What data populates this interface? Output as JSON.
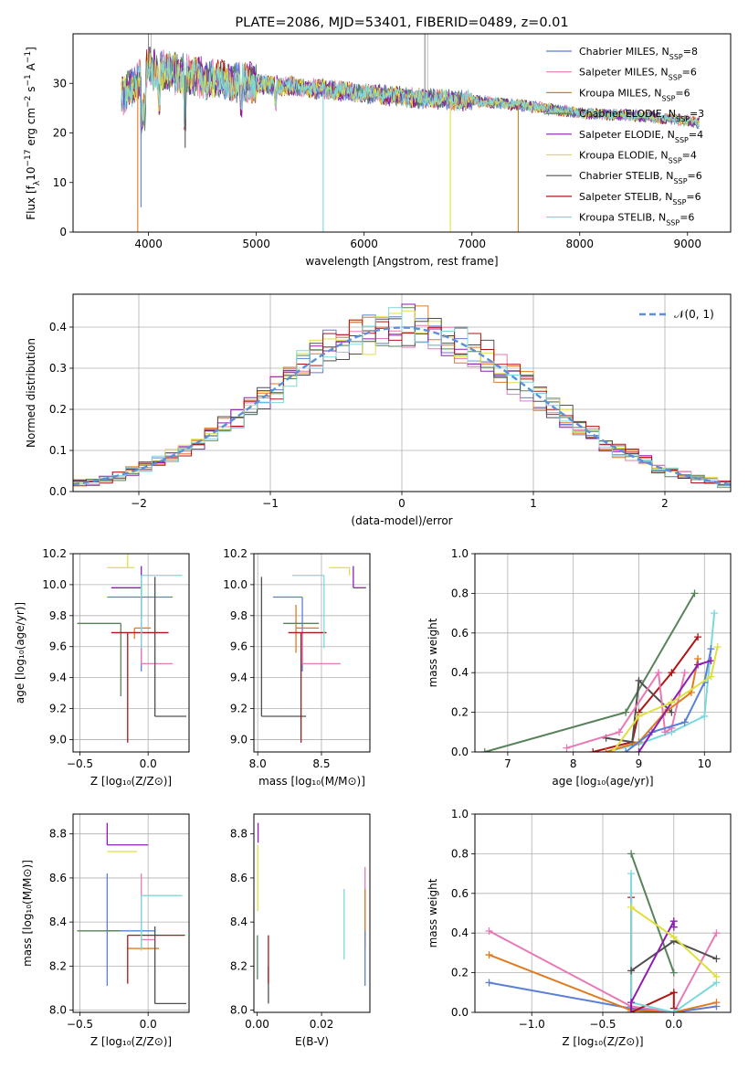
{
  "title": "PLATE=2086, MJD=53401, FIBERID=0489, z=0.01",
  "colors": {
    "chabrier_miles": "#5a7fd8",
    "salpeter_miles": "#e879b4",
    "kroupa_miles": "#e07a1f",
    "chabrier_elodie": "#58835a",
    "salpeter_elodie": "#8f1cb0",
    "kroupa_elodie": "#dfe040",
    "chabrier_stelib": "#505050",
    "salpeter_stelib": "#b01515",
    "kroupa_stelib": "#7bd9dc",
    "normal_fit": "#5c8fd6"
  },
  "chart_data": [
    {
      "type": "line",
      "id": "spectrum",
      "xlabel": "wavelength [Angstrom, rest frame]",
      "ylabel": "Flux [f_λ10^-17 erg cm^-2 s^-1 A^-1]",
      "xlim": [
        3300,
        9400
      ],
      "ylim": [
        0,
        40
      ],
      "xticks": [
        4000,
        5000,
        6000,
        7000,
        8000,
        9000
      ],
      "yticks": [
        0,
        10,
        20,
        30
      ],
      "legend_position": "top-right",
      "series": [
        {
          "name": "Chabrier MILES, N_SSP=8",
          "key": "chabrier_miles"
        },
        {
          "name": "Salpeter MILES, N_SSP=6",
          "key": "salpeter_miles"
        },
        {
          "name": "Kroupa MILES, N_SSP=6",
          "key": "kroupa_miles"
        },
        {
          "name": "Chabrier ELODIE, N_SSP=3",
          "key": "chabrier_elodie"
        },
        {
          "name": "Salpeter ELODIE, N_SSP=4",
          "key": "salpeter_elodie"
        },
        {
          "name": "Kroupa ELODIE, N_SSP=4",
          "key": "kroupa_elodie"
        },
        {
          "name": "Chabrier STELIB, N_SSP=6",
          "key": "chabrier_stelib"
        },
        {
          "name": "Salpeter STELIB, N_SSP=6",
          "key": "salpeter_stelib"
        },
        {
          "name": "Kroupa STELIB, N_SSP=6",
          "key": "kroupa_stelib"
        }
      ],
      "approx_continuum": {
        "x": [
          3750,
          4000,
          4500,
          5000,
          5500,
          6000,
          6500,
          7000,
          7500,
          8000,
          8500,
          9000,
          9100
        ],
        "y": [
          27,
          33,
          31,
          30,
          29,
          28,
          27,
          26.5,
          25.5,
          24,
          23.5,
          22.5,
          22
        ]
      },
      "features": [
        {
          "x": 3900,
          "depth": 0,
          "key": "kroupa_miles"
        },
        {
          "x": 3930,
          "depth": 5,
          "key": "chabrier_miles"
        },
        {
          "x": 4340,
          "depth": 17,
          "key": "chabrier_stelib"
        },
        {
          "x": 5620,
          "depth": 0,
          "key": "kroupa_stelib"
        },
        {
          "x": 6800,
          "depth": 0,
          "key": "kroupa_elodie"
        },
        {
          "x": 7430,
          "depth": 0,
          "key": "kroupa_miles"
        }
      ],
      "spikes": [
        {
          "x": 4000,
          "top": 40
        },
        {
          "x": 6563,
          "top": 40
        }
      ]
    },
    {
      "type": "line",
      "id": "residuals",
      "xlabel": "(data-model)/error",
      "ylabel": "Normed distribution",
      "xlim": [
        -2.5,
        2.5
      ],
      "ylim": [
        0,
        0.48
      ],
      "xticks": [
        -2,
        -1,
        0,
        1,
        2
      ],
      "yticks": [
        0.0,
        0.1,
        0.2,
        0.3,
        0.4
      ],
      "legend": "𝒩(0, 1)",
      "legend_position": "top-right",
      "bin_width": 0.1
    },
    {
      "type": "scatter",
      "id": "age_vs_Z",
      "xlabel": "Z [log10(Z/Z⊙)]",
      "ylabel": "age [log10(age/yr)]",
      "xlim": [
        -0.55,
        0.3
      ],
      "ylim": [
        8.92,
        10.2
      ],
      "xticks": [
        -0.5,
        0.0
      ],
      "yticks": [
        9.0,
        9.2,
        9.4,
        9.6,
        9.8,
        10.0,
        10.2
      ],
      "points": [
        {
          "key": "chabrier_miles",
          "x": -0.05,
          "xerr": [
            0.25,
            0.23
          ],
          "y": 9.92,
          "yerr": [
            0.48,
            0.0
          ]
        },
        {
          "key": "salpeter_miles",
          "x": -0.05,
          "xerr": [
            0.0,
            0.23
          ],
          "y": 9.49,
          "yerr": [
            0.0,
            0.22
          ]
        },
        {
          "key": "kroupa_miles",
          "x": -0.1,
          "xerr": [
            0.0,
            0.12
          ],
          "y": 9.72,
          "yerr": [
            0.07,
            0.0
          ]
        },
        {
          "key": "chabrier_elodie",
          "x": -0.2,
          "xerr": [
            0.32,
            0.0
          ],
          "y": 9.75,
          "yerr": [
            0.47,
            0.0
          ]
        },
        {
          "key": "salpeter_elodie",
          "x": -0.05,
          "xerr": [
            0.22,
            0.0
          ],
          "y": 9.98,
          "yerr": [
            0.2,
            0.14
          ]
        },
        {
          "key": "kroupa_elodie",
          "x": -0.15,
          "xerr": [
            0.15,
            0.05
          ],
          "y": 10.11,
          "yerr": [
            0.0,
            0.09
          ]
        },
        {
          "key": "chabrier_stelib",
          "x": 0.05,
          "xerr": [
            0.0,
            0.23
          ],
          "y": 9.15,
          "yerr": [
            0.0,
            0.9
          ]
        },
        {
          "key": "salpeter_stelib",
          "x": -0.15,
          "xerr": [
            0.12,
            0.3
          ],
          "y": 9.69,
          "yerr": [
            0.71,
            0.0
          ]
        },
        {
          "key": "kroupa_stelib",
          "x": -0.05,
          "xerr": [
            0.0,
            0.3
          ],
          "y": 10.06,
          "yerr": [
            0.47,
            0.0
          ]
        }
      ]
    },
    {
      "type": "scatter",
      "id": "age_vs_mass",
      "xlabel": "mass [log10(M/M⊙)]",
      "ylabel": "",
      "xlim": [
        7.97,
        8.88
      ],
      "ylim": [
        8.92,
        10.2
      ],
      "xticks": [
        8.0,
        8.5
      ],
      "yticks": [
        9.0,
        9.2,
        9.4,
        9.6,
        9.8,
        10.0,
        10.2
      ],
      "points": [
        {
          "key": "chabrier_miles",
          "x": 8.35,
          "xerr": [
            0.23,
            0.0
          ],
          "y": 9.92,
          "yerr": [
            0.48,
            0.0
          ]
        },
        {
          "key": "salpeter_miles",
          "x": 8.35,
          "xerr": [
            0.0,
            0.3
          ],
          "y": 9.49,
          "yerr": [
            0.0,
            0.22
          ]
        },
        {
          "key": "kroupa_miles",
          "x": 8.3,
          "xerr": [
            0.0,
            0.18
          ],
          "y": 9.72,
          "yerr": [
            0.16,
            0.15
          ]
        },
        {
          "key": "chabrier_elodie",
          "x": 8.36,
          "xerr": [
            0.16,
            0.12
          ],
          "y": 9.75,
          "yerr": [
            0.0,
            0.0
          ]
        },
        {
          "key": "salpeter_elodie",
          "x": 8.75,
          "xerr": [
            0.0,
            0.1
          ],
          "y": 9.98,
          "yerr": [
            0.0,
            0.14
          ]
        },
        {
          "key": "kroupa_elodie",
          "x": 8.72,
          "xerr": [
            0.16,
            0.0
          ],
          "y": 10.11,
          "yerr": [
            0.05,
            0.0
          ]
        },
        {
          "key": "chabrier_stelib",
          "x": 8.03,
          "xerr": [
            0.0,
            0.35
          ],
          "y": 9.15,
          "yerr": [
            0.0,
            0.9
          ]
        },
        {
          "key": "salpeter_stelib",
          "x": 8.34,
          "xerr": [
            0.1,
            0.2
          ],
          "y": 9.69,
          "yerr": [
            0.71,
            0.0
          ]
        },
        {
          "key": "kroupa_stelib",
          "x": 8.52,
          "xerr": [
            0.25,
            0.0
          ],
          "y": 10.06,
          "yerr": [
            0.47,
            0.0
          ]
        }
      ]
    },
    {
      "type": "line",
      "id": "weight_vs_age",
      "xlabel": "age [log10(age/yr)]",
      "ylabel": "mass weight",
      "xlim": [
        6.5,
        10.4
      ],
      "ylim": [
        0,
        1.0
      ],
      "xticks": [
        7,
        8,
        9,
        10
      ],
      "yticks": [
        0.0,
        0.2,
        0.4,
        0.6,
        0.8,
        1.0
      ],
      "series": [
        {
          "key": "chabrier_elodie",
          "x": [
            6.65,
            8.8,
            9.85
          ],
          "y": [
            0.0,
            0.2,
            0.8
          ]
        },
        {
          "key": "salpeter_stelib",
          "x": [
            8.3,
            8.9,
            9.0,
            9.5,
            9.9
          ],
          "y": [
            0.0,
            0.05,
            0.2,
            0.4,
            0.58
          ]
        },
        {
          "key": "kroupa_stelib",
          "x": [
            8.5,
            9.0,
            9.5,
            10.0,
            10.15
          ],
          "y": [
            0.0,
            0.04,
            0.1,
            0.18,
            0.7
          ]
        },
        {
          "key": "chabrier_stelib",
          "x": [
            8.5,
            8.9,
            9.0,
            9.5
          ],
          "y": [
            0.07,
            0.05,
            0.36,
            0.2
          ]
        },
        {
          "key": "salpeter_miles",
          "x": [
            7.9,
            8.7,
            9.3,
            9.4,
            9.5,
            9.7
          ],
          "y": [
            0.02,
            0.1,
            0.4,
            0.1,
            0.12,
            0.4
          ]
        },
        {
          "key": "kroupa_miles",
          "x": [
            8.5,
            9.0,
            9.4,
            9.8,
            9.9
          ],
          "y": [
            0.0,
            0.05,
            0.2,
            0.3,
            0.47
          ]
        },
        {
          "key": "chabrier_miles",
          "x": [
            8.8,
            9.2,
            9.7,
            10.0,
            10.1
          ],
          "y": [
            0.0,
            0.1,
            0.15,
            0.35,
            0.52
          ]
        },
        {
          "key": "salpeter_elodie",
          "x": [
            9.0,
            9.5,
            9.9,
            10.1
          ],
          "y": [
            0.0,
            0.25,
            0.44,
            0.46
          ]
        },
        {
          "key": "kroupa_elodie",
          "x": [
            8.6,
            9.0,
            9.5,
            10.1,
            10.2
          ],
          "y": [
            0.0,
            0.18,
            0.25,
            0.38,
            0.53
          ]
        }
      ]
    },
    {
      "type": "scatter",
      "id": "mass_vs_Z",
      "xlabel": "Z [log10(Z/Z⊙)]",
      "ylabel": "mass [log10(M/M⊙)]",
      "xlim": [
        -0.55,
        0.3
      ],
      "ylim": [
        7.99,
        8.89
      ],
      "xticks": [
        -0.5,
        0.0
      ],
      "yticks": [
        8.0,
        8.2,
        8.4,
        8.6,
        8.8
      ],
      "points": [
        {
          "key": "chabrier_miles",
          "x": -0.3,
          "xerr": [
            0.0,
            0.35
          ],
          "y": 8.36,
          "yerr": [
            0.25,
            0.26
          ]
        },
        {
          "key": "salpeter_miles",
          "x": -0.05,
          "xerr": [
            0.0,
            0.1
          ],
          "y": 8.32,
          "yerr": [
            0.0,
            0.3
          ]
        },
        {
          "key": "kroupa_miles",
          "x": -0.05,
          "xerr": [
            0.1,
            0.13
          ],
          "y": 8.28,
          "yerr": [
            0.0,
            0.05
          ]
        },
        {
          "key": "chabrier_elodie",
          "x": -0.2,
          "xerr": [
            0.32,
            0.0
          ],
          "y": 8.36,
          "yerr": [
            0.0,
            0.0
          ]
        },
        {
          "key": "salpeter_elodie",
          "x": -0.3,
          "xerr": [
            0.0,
            0.3
          ],
          "y": 8.75,
          "yerr": [
            0.0,
            0.1
          ]
        },
        {
          "key": "kroupa_elodie",
          "x": -0.3,
          "xerr": [
            0.0,
            0.22
          ],
          "y": 8.72,
          "yerr": [
            0.0,
            0.0
          ]
        },
        {
          "key": "chabrier_stelib",
          "x": 0.05,
          "xerr": [
            0.0,
            0.23
          ],
          "y": 8.03,
          "yerr": [
            0.0,
            0.35
          ]
        },
        {
          "key": "salpeter_stelib",
          "x": -0.15,
          "xerr": [
            0.0,
            0.42
          ],
          "y": 8.34,
          "yerr": [
            0.22,
            0.0
          ]
        },
        {
          "key": "kroupa_stelib",
          "x": -0.05,
          "xerr": [
            0.0,
            0.3
          ],
          "y": 8.52,
          "yerr": [
            0.25,
            0.0
          ]
        }
      ]
    },
    {
      "type": "scatter",
      "id": "mass_vs_ebv",
      "xlabel": "E(B-V)",
      "ylabel": "",
      "xlim": [
        -0.001,
        0.035
      ],
      "ylim": [
        7.99,
        8.89
      ],
      "xticks": [
        0.0,
        0.02
      ],
      "yticks": [
        8.0,
        8.2,
        8.4,
        8.6,
        8.8
      ],
      "points": [
        {
          "key": "kroupa_elodie",
          "x": 0.0002,
          "y": 8.6,
          "yerr": [
            0.15,
            0.15
          ]
        },
        {
          "key": "salpeter_elodie",
          "x": 0.0003,
          "y": 8.76,
          "yerr": [
            0.0,
            0.09
          ]
        },
        {
          "key": "chabrier_elodie",
          "x": 0.0001,
          "y": 8.34,
          "yerr": [
            0.2,
            0.0
          ]
        },
        {
          "key": "chabrier_stelib",
          "x": 0.0035,
          "y": 8.2,
          "yerr": [
            0.17,
            0.0
          ]
        },
        {
          "key": "salpeter_stelib",
          "x": 0.0035,
          "y": 8.34,
          "yerr": [
            0.22,
            0.0
          ]
        },
        {
          "key": "kroupa_stelib",
          "x": 0.027,
          "y": 8.4,
          "yerr": [
            0.17,
            0.15
          ]
        },
        {
          "key": "salpeter_miles",
          "x": 0.0335,
          "y": 8.32,
          "yerr": [
            0.0,
            0.33
          ]
        },
        {
          "key": "kroupa_miles",
          "x": 0.0335,
          "y": 8.28,
          "yerr": [
            0.0,
            0.27
          ]
        },
        {
          "key": "chabrier_miles",
          "x": 0.0335,
          "y": 8.36,
          "yerr": [
            0.25,
            0.0
          ]
        }
      ]
    },
    {
      "type": "line",
      "id": "weight_vs_Z",
      "xlabel": "Z [log10(Z/Z⊙)]",
      "ylabel": "mass weight",
      "xlim": [
        -1.4,
        0.4
      ],
      "ylim": [
        0,
        1.0
      ],
      "xticks": [
        -1.0,
        -0.5,
        0.0
      ],
      "yticks": [
        0.0,
        0.2,
        0.4,
        0.6,
        0.8,
        1.0
      ],
      "series": [
        {
          "key": "chabrier_miles",
          "x": [
            -1.3,
            -0.3,
            0.0,
            0.3
          ],
          "y": [
            0.15,
            0.02,
            0.0,
            0.03
          ]
        },
        {
          "key": "kroupa_miles",
          "x": [
            -1.3,
            -0.3,
            0.0,
            0.3
          ],
          "y": [
            0.29,
            0.01,
            0.0,
            0.05
          ]
        },
        {
          "key": "salpeter_miles",
          "x": [
            -1.3,
            -0.3,
            0.0,
            0.3
          ],
          "y": [
            0.41,
            0.03,
            0.0,
            0.4
          ]
        },
        {
          "key": "chabrier_elodie",
          "x": [
            -0.3,
            0.0
          ],
          "y": [
            0.8,
            0.2
          ]
        },
        {
          "key": "salpeter_stelib",
          "x": [
            -0.3,
            -0.3,
            0.0,
            0.0
          ],
          "y": [
            0.58,
            0.0,
            0.1,
            0.02
          ]
        },
        {
          "key": "kroupa_stelib",
          "x": [
            -0.3,
            -0.3,
            0.0,
            0.3
          ],
          "y": [
            0.7,
            0.05,
            0.0,
            0.15
          ]
        },
        {
          "key": "chabrier_stelib",
          "x": [
            -0.3,
            0.0,
            0.3
          ],
          "y": [
            0.21,
            0.36,
            0.27
          ]
        },
        {
          "key": "salpeter_elodie",
          "x": [
            -0.3,
            -0.3,
            0.0,
            0.0
          ],
          "y": [
            0.0,
            0.05,
            0.46,
            0.43
          ]
        },
        {
          "key": "kroupa_elodie",
          "x": [
            -0.3,
            0.0,
            0.3
          ],
          "y": [
            0.53,
            0.38,
            0.18
          ]
        }
      ]
    }
  ]
}
